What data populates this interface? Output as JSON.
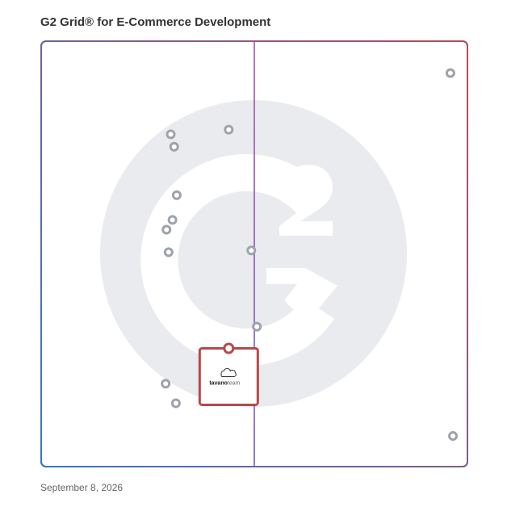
{
  "header": {
    "title": "G2 Grid® for E-Commerce Development"
  },
  "footer": {
    "date": "September 8, 2026"
  },
  "colors": {
    "frame_start": "#4b3bb0",
    "frame_end": "#ef5a2a",
    "frame_bottom_left": "#1aa0e0",
    "frame_bottom_right": "#7a2f9e",
    "horizontal_axis_left": "#2f77c8",
    "horizontal_axis_right": "#c5374a",
    "vertical_axis_top": "#a247a6",
    "vertical_axis_bottom": "#6a4fc0",
    "watermark": "#e9ebef",
    "point": "#9ea3ab",
    "highlight_box": "#b5494b"
  },
  "watermark": {
    "icon": "g2-logo-icon"
  },
  "chart_data": {
    "type": "scatter",
    "title": "G2 Grid® for E-Commerce Development",
    "xlabel": "",
    "ylabel": "",
    "xlim": [
      0,
      100
    ],
    "ylim": [
      0,
      100
    ],
    "grid": false,
    "quadrant_dividers": {
      "x": 50,
      "y": 50
    },
    "points": [
      {
        "x": 96.0,
        "y": 92.5
      },
      {
        "x": 30.4,
        "y": 78.1
      },
      {
        "x": 44.0,
        "y": 79.2
      },
      {
        "x": 31.2,
        "y": 75.2
      },
      {
        "x": 31.8,
        "y": 63.8
      },
      {
        "x": 30.8,
        "y": 58.0
      },
      {
        "x": 29.4,
        "y": 55.7
      },
      {
        "x": 49.3,
        "y": 50.8
      },
      {
        "x": 29.9,
        "y": 50.4
      },
      {
        "x": 50.6,
        "y": 32.9
      },
      {
        "x": 29.2,
        "y": 19.5
      },
      {
        "x": 31.6,
        "y": 14.9
      },
      {
        "x": 96.6,
        "y": 7.2
      }
    ],
    "highlight": {
      "x": 44.0,
      "y": 27.8,
      "name": "tavanoteam",
      "logo_text_a": "tavano",
      "logo_text_b": "team",
      "logo_icon": "cloud-icon"
    }
  }
}
